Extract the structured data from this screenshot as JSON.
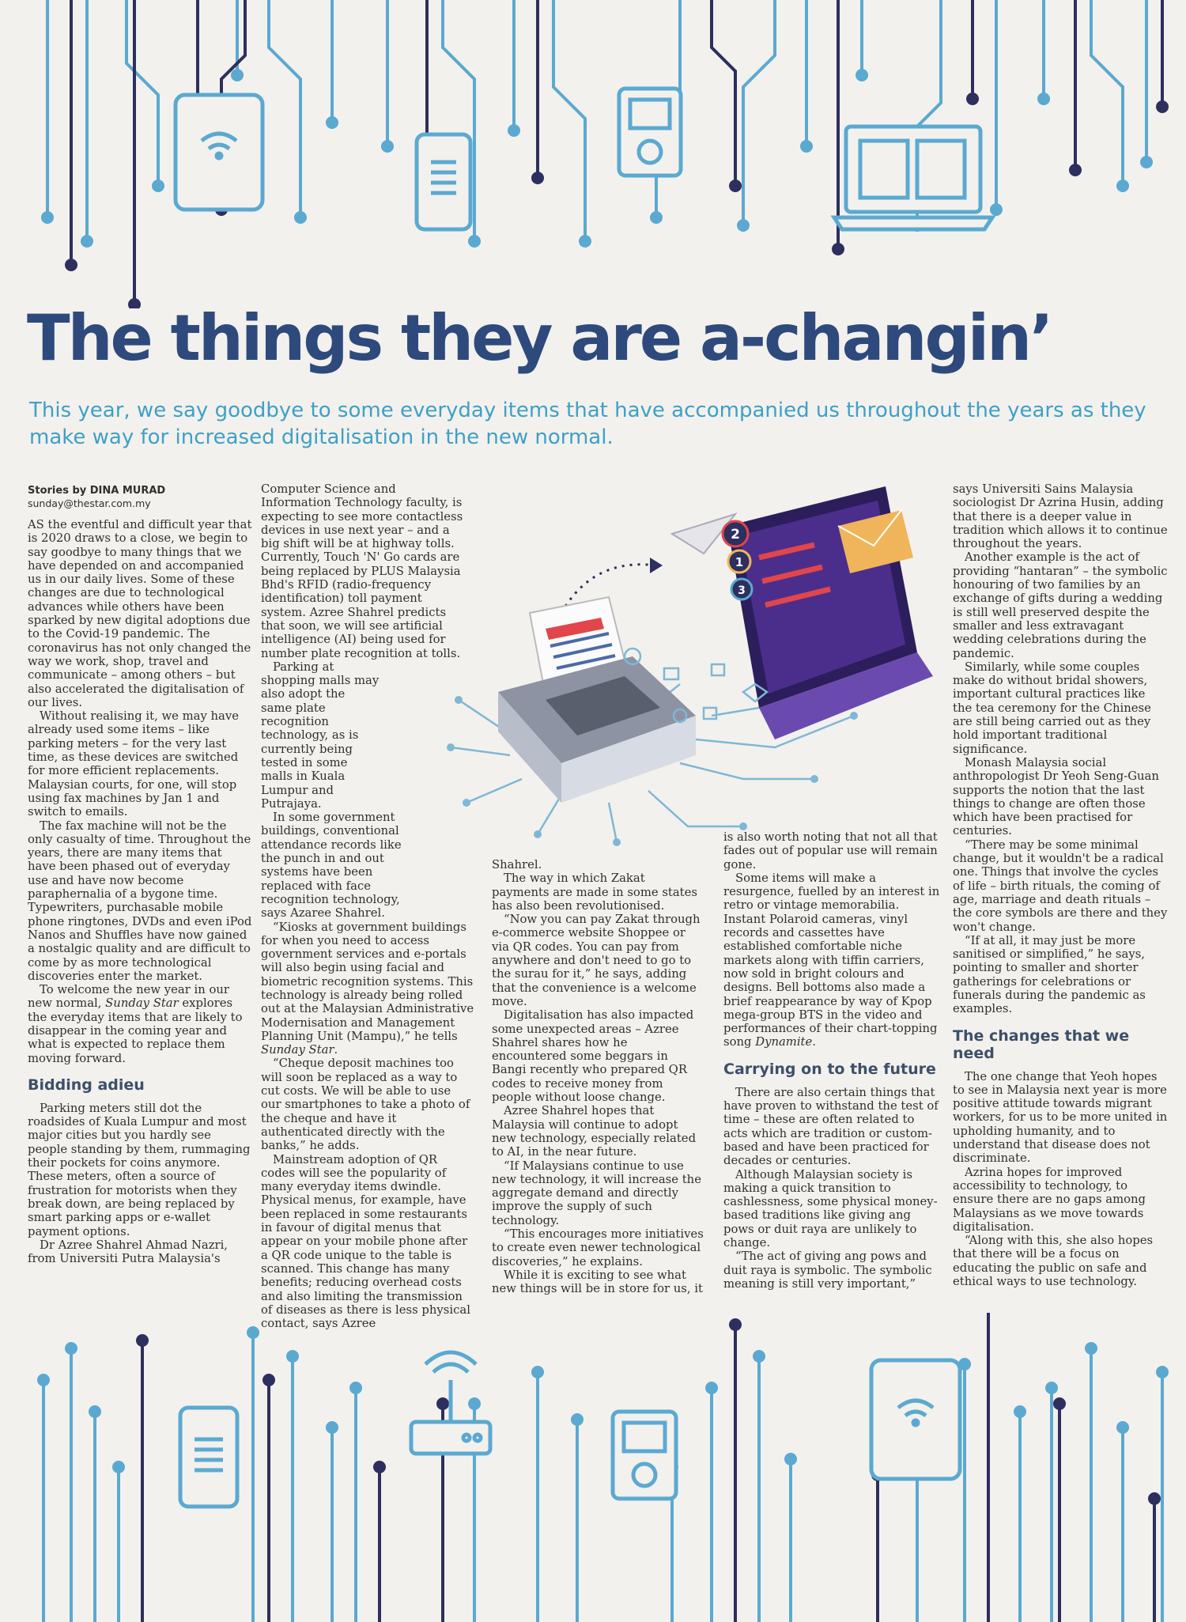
{
  "headline": "The things they are a-changin’",
  "standfirst": "This year, we say goodbye to some everyday items that have accompanied us throughout the years as they make way for increased digitalisation in the new normal.",
  "byline": "Stories by DINA MURAD",
  "email": "sunday@thestar.com.my",
  "col1": {
    "p1": "AS the eventful and difficult year that is 2020 draws to a close, we begin to say goodbye to many things that we have depended on and accompanied us in our daily lives. Some of these changes are due to technological advances while others have been sparked by new digital adoptions due to the Covid-19 pandemic. The coronavirus has not only changed the way we work, shop, travel and communicate – among others – but also accelerated the digitalisation of our lives.",
    "p2": "Without realising it, we may have already used some items – like parking meters – for the very last time, as these devices are switched for more efficient replacements. Malaysian courts, for one, will stop using fax machines by Jan 1 and switch to emails.",
    "p3": "The fax machine will not be the only casualty of time. Throughout the years, there are many items that have been phased out of everyday use and have now become paraphernalia of a bygone time. Typewriters, purchasable mobile phone ringtones, DVDs and even iPod Nanos and Shuffles have now gained a nostalgic quality and are difficult to come by as more technological discoveries enter the market.",
    "p4_a": "To welcome the new year in our new normal, ",
    "p4_em": "Sunday Star",
    "p4_b": " explores the everyday items that are likely to disappear in the coming year and what is expected to replace them moving forward.",
    "subhead": "Bidding adieu",
    "p5": "Parking meters still dot the roadsides of Kuala Lumpur and most major cities but you hardly see people standing by them, rummaging their pockets for coins anymore. These meters, often a source of frustration for motorists when they break down, are being replaced by smart parking apps or e-wallet payment options.",
    "p6": "Dr Azree Shahrel Ahmad Nazri, from Universiti Putra Malaysia's"
  },
  "col2": {
    "p1": "Computer Science and Information Technology faculty, is expecting to see more contactless devices in use next year – and a big shift will be at highway tolls. Currently, Touch 'N' Go cards are being replaced by PLUS Malaysia Bhd's RFID (radio-frequency identification) toll payment system. Azree Shahrel predicts that soon, we will see artificial intelligence (AI) being used for number plate recognition at tolls.",
    "p2": "Parking at shopping malls may also adopt the same plate recognition technology, as is currently being tested in some malls in Kuala Lumpur and Putrajaya.",
    "p3": "In some government buildings, conventional attendance records like the punch in and out systems have been replaced with face recognition technology, says Azaree Shahrel.",
    "p4_a": "“Kiosks at government buildings for when you need to access government services and e-portals will also begin using facial and biometric recognition systems. This technology is already being rolled out at the Malaysian Administrative Modernisation and Management Planning Unit (Mampu),” he tells ",
    "p4_em": "Sunday Star",
    "p4_b": ".",
    "p5": "“Cheque deposit machines too will soon be replaced as a way to cut costs. We will be able to use our smartphones to take a photo of the cheque and have it authenticated directly with the banks,” he adds.",
    "p6": "Mainstream adoption of QR codes will see the popularity of many everyday items dwindle. Physical menus, for example, have been replaced in some restaurants in favour of digital menus that appear on your mobile phone after a QR code unique to the table is scanned. This change has many benefits; reducing overhead costs and also limiting the transmission of diseases as there is less physical contact, says Azree"
  },
  "col3": {
    "p0": "Shahrel.",
    "p1": "The way in which Zakat payments are made in some states has also been revolutionised.",
    "p2": "“Now you can pay Zakat through e-commerce website Shoppee or via QR codes. You can pay from anywhere and don't need to go to the surau for it,” he says, adding that the convenience is a welcome move.",
    "p3": "Digitalisation has also impacted some unexpected areas – Azree Shahrel shares how he encountered some beggars in Bangi recently who prepared QR codes to receive money from people without loose change.",
    "p4": "Azree Shahrel hopes that Malaysia will continue to adopt new technology, especially related to AI, in the near future.",
    "p5": "“If Malaysians continue to use new technology, it will increase the aggregate demand and directly improve the supply of such technology.",
    "p6": "“This encourages more initiatives to create even newer technological discoveries,” he explains.",
    "p7": "While it is exciting to see what new things will be in store for us, it"
  },
  "col4": {
    "p0": "is also worth noting that not all that fades out of popular use will remain gone.",
    "p1_a": "Some items will make a resurgence, fuelled by an interest in retro or vintage memorabilia. Instant Polaroid cameras, vinyl records and cassettes have established comfortable niche markets along with tiffin carriers, now sold in bright colours and designs. Bell bottoms also made a brief reappearance by way of Kpop mega-group BTS in the video and performances of their chart-topping song ",
    "p1_em": "Dynamite",
    "p1_b": ".",
    "subhead": "Carrying on to the future",
    "p2": "There are also certain things that have proven to withstand the test of time – these are often related to acts which are tradition or custom-based and have been practiced for decades or centuries.",
    "p3": "Although Malaysian society is making a quick transition to cashlessness, some physical money-based traditions like giving ang pows or duit raya are unlikely to change.",
    "p4": "“The act of giving ang pows and duit raya is symbolic. The symbolic meaning is still very important,”"
  },
  "col5": {
    "p0": "says Universiti Sains Malaysia sociologist Dr Azrina Husin, adding that there is a deeper value in tradition which allows it to continue throughout the years.",
    "p1": "Another example is the act of providing “hantaran” – the symbolic honouring of two families by an exchange of gifts during a wedding is still well preserved despite the smaller and less extravagant wedding celebrations during the pandemic.",
    "p2": "Similarly, while some couples make do without bridal showers, important cultural practices like the tea ceremony for the Chinese are still being carried out as they hold important traditional significance.",
    "p3": "Monash Malaysia social anthropologist Dr Yeoh Seng-Guan supports the notion that the last things to change are often those which have been practised for centuries.",
    "p4": "“There may be some minimal change, but it wouldn't be a radical one. Things that involve the cycles of life – birth rituals, the coming of age, marriage and death rituals – the core symbols are there and they won't change.",
    "p5": "“If at all, it may just be more sanitised or simplified,” he says, pointing to smaller and shorter gatherings for celebrations or funerals during the pandemic as examples.",
    "subhead": "The changes that we need",
    "p6": "The one change that Yeoh hopes to see in Malaysia next year is more positive attitude towards migrant workers, for us to be more united in upholding humanity, and to understand that disease does not discriminate.",
    "p7": "Azrina hopes for improved accessibility to technology, to ensure there are no gaps among Malaysians as we move towards digitalisation.",
    "p8": "“Along with this, she also hopes that there will be a focus on educating the public on safe and ethical ways to use technology."
  },
  "illustration_badges": [
    "2",
    "1",
    "3"
  ],
  "colors": {
    "headline": "#2e4a7c",
    "standfirst": "#3ea0c6",
    "circuit_light": "#5ba9d1",
    "circuit_dark": "#2d2f5e",
    "laptop": "#4b2e8c"
  }
}
